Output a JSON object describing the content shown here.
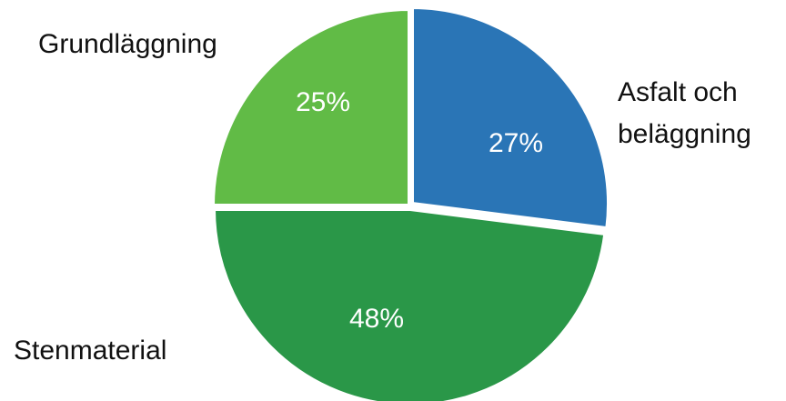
{
  "chart_data": {
    "type": "pie",
    "title": "",
    "categories": [
      "Asfalt och beläggning",
      "Stenmaterial",
      "Grundläggning"
    ],
    "category_label_lines": [
      [
        "Asfalt och",
        "beläggning"
      ],
      [
        "Stenmaterial"
      ],
      [
        "Grundläggning"
      ]
    ],
    "values": [
      27,
      48,
      25
    ],
    "value_labels": [
      "27%",
      "48%",
      "25%"
    ],
    "colors": [
      "#2a75b6",
      "#2a9748",
      "#61bb46"
    ],
    "start_angle_deg": 0,
    "direction": "clockwise",
    "legend": "none",
    "label_placement": "outside"
  }
}
